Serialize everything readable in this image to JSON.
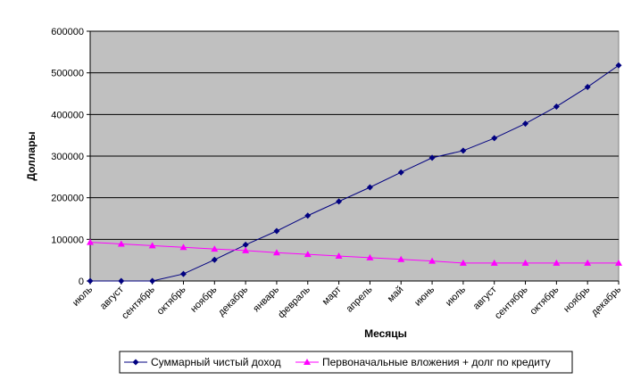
{
  "chart_data": {
    "type": "line",
    "title": "",
    "xlabel": "Месяцы",
    "ylabel": "Доллары",
    "ylim": [
      0,
      600000
    ],
    "yticks": [
      "0",
      "100000",
      "200000",
      "300000",
      "400000",
      "500000",
      "600000"
    ],
    "grid": "horizontal",
    "legend_position": "bottom",
    "plot_background": "#c0c0c0",
    "categories": [
      "июль",
      "август",
      "сентябрь",
      "октябрь",
      "ноябрь",
      "декабрь",
      "январь",
      "февраль",
      "март",
      "апрель",
      "май",
      "июнь",
      "июль",
      "август",
      "сентябрь",
      "октябрь",
      "ноябрь",
      "декабрь"
    ],
    "series": [
      {
        "name": "Суммарный чистый доход",
        "color": "#000080",
        "marker": "diamond",
        "values": [
          0,
          0,
          0,
          17000,
          51000,
          87000,
          120000,
          157000,
          191000,
          225000,
          261000,
          296000,
          313000,
          343000,
          378000,
          419000,
          466000,
          518000
        ]
      },
      {
        "name": "Первоначальные вложения + долг по кредиту",
        "color": "#ff00ff",
        "marker": "triangle",
        "values": [
          93000,
          89000,
          85000,
          81000,
          77000,
          73000,
          68000,
          64000,
          60000,
          56000,
          52000,
          48000,
          43000,
          43000,
          43000,
          43000,
          43000,
          43000
        ]
      }
    ]
  }
}
